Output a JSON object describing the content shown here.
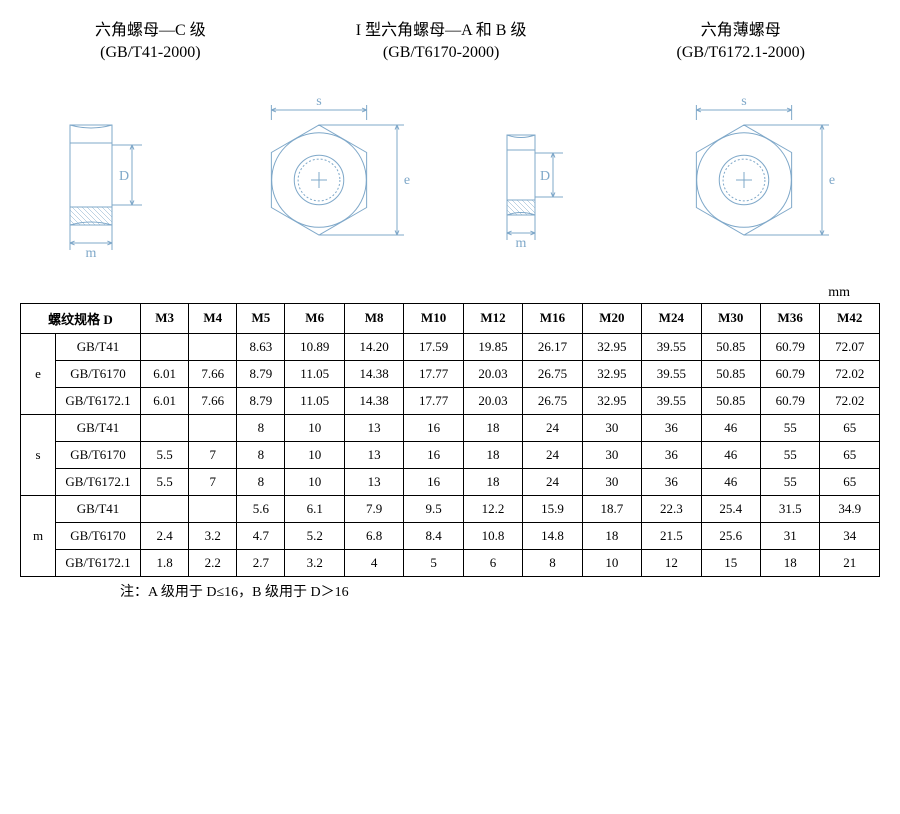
{
  "headers": [
    {
      "title": "六角螺母—C 级",
      "spec": "(GB/T41-2000)"
    },
    {
      "title": "I 型六角螺母—A 和 B 级",
      "spec": "(GB/T6170-2000)"
    },
    {
      "title": "六角薄螺母",
      "spec": "(GB/T6172.1-2000)"
    }
  ],
  "unit": "mm",
  "table": {
    "colheader_label": "螺纹规格 D",
    "sizes": [
      "M3",
      "M4",
      "M5",
      "M6",
      "M8",
      "M10",
      "M12",
      "M16",
      "M20",
      "M24",
      "M30",
      "M36",
      "M42"
    ],
    "groups": [
      {
        "param": "e",
        "rows": [
          {
            "std": "GB/T41",
            "vals": [
              "",
              "",
              "8.63",
              "10.89",
              "14.20",
              "17.59",
              "19.85",
              "26.17",
              "32.95",
              "39.55",
              "50.85",
              "60.79",
              "72.07"
            ]
          },
          {
            "std": "GB/T6170",
            "vals": [
              "6.01",
              "7.66",
              "8.79",
              "11.05",
              "14.38",
              "17.77",
              "20.03",
              "26.75",
              "32.95",
              "39.55",
              "50.85",
              "60.79",
              "72.02"
            ]
          },
          {
            "std": "GB/T6172.1",
            "vals": [
              "6.01",
              "7.66",
              "8.79",
              "11.05",
              "14.38",
              "17.77",
              "20.03",
              "26.75",
              "32.95",
              "39.55",
              "50.85",
              "60.79",
              "72.02"
            ]
          }
        ]
      },
      {
        "param": "s",
        "rows": [
          {
            "std": "GB/T41",
            "vals": [
              "",
              "",
              "8",
              "10",
              "13",
              "16",
              "18",
              "24",
              "30",
              "36",
              "46",
              "55",
              "65"
            ]
          },
          {
            "std": "GB/T6170",
            "vals": [
              "5.5",
              "7",
              "8",
              "10",
              "13",
              "16",
              "18",
              "24",
              "30",
              "36",
              "46",
              "55",
              "65"
            ]
          },
          {
            "std": "GB/T6172.1",
            "vals": [
              "5.5",
              "7",
              "8",
              "10",
              "13",
              "16",
              "18",
              "24",
              "30",
              "36",
              "46",
              "55",
              "65"
            ]
          }
        ]
      },
      {
        "param": "m",
        "rows": [
          {
            "std": "GB/T41",
            "vals": [
              "",
              "",
              "5.6",
              "6.1",
              "7.9",
              "9.5",
              "12.2",
              "15.9",
              "18.7",
              "22.3",
              "25.4",
              "31.5",
              "34.9"
            ]
          },
          {
            "std": "GB/T6170",
            "vals": [
              "2.4",
              "3.2",
              "4.7",
              "5.2",
              "6.8",
              "8.4",
              "10.8",
              "14.8",
              "18",
              "21.5",
              "25.6",
              "31",
              "34"
            ]
          },
          {
            "std": "GB/T6172.1",
            "vals": [
              "1.8",
              "2.2",
              "2.7",
              "3.2",
              "4",
              "5",
              "6",
              "8",
              "10",
              "12",
              "15",
              "18",
              "21"
            ]
          }
        ]
      }
    ]
  },
  "footnote": "注：A 级用于 D≤16，B 级用于 D＞16",
  "diagram": {
    "stroke": "#7fa8c9",
    "labels": {
      "s": "s",
      "e": "e",
      "D": "D",
      "m": "m"
    }
  }
}
